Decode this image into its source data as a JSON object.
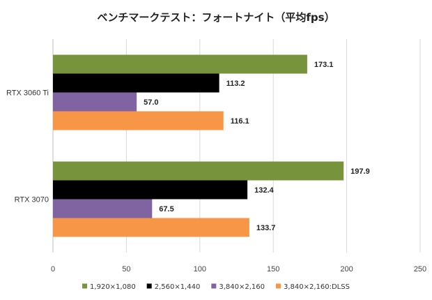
{
  "chart_data": {
    "type": "bar",
    "orientation": "horizontal",
    "title": "ベンチマークテスト：フォートナイト（平均fps）",
    "xlabel": "",
    "ylabel": "",
    "categories": [
      "RTX 3060 Ti",
      "RTX 3070"
    ],
    "series": [
      {
        "name": "1,920×1,080",
        "color": "#77933c",
        "values": [
          173.1,
          197.9
        ]
      },
      {
        "name": "2,560×1,440",
        "color": "#000000",
        "values": [
          113.2,
          132.4
        ]
      },
      {
        "name": "3,840×2,160",
        "color": "#8064a2",
        "values": [
          57.0,
          67.5
        ]
      },
      {
        "name": "3,840×2,160:DLSS",
        "color": "#f79646",
        "values": [
          116.1,
          133.7
        ]
      }
    ],
    "data_labels": [
      [
        "173.1",
        "197.9"
      ],
      [
        "113.2",
        "132.4"
      ],
      [
        "57.0",
        "67.5"
      ],
      [
        "116.1",
        "133.7"
      ]
    ],
    "xlim": [
      0,
      250
    ],
    "xticks": [
      0,
      50,
      100,
      150,
      200,
      250
    ],
    "xtick_labels": [
      "0",
      "50",
      "100",
      "150",
      "200",
      "250"
    ],
    "grid": "vertical",
    "legend": "bottom"
  }
}
